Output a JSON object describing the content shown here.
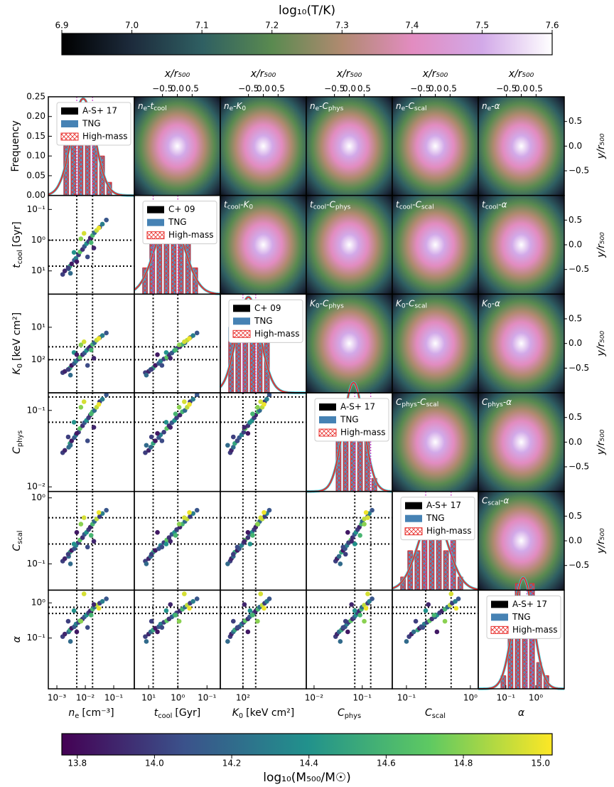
{
  "colorbar_T": {
    "label": "log₁₀(T/K)",
    "lim": [
      6.9,
      7.6
    ],
    "ticks": [
      6.9,
      {
        "value": 7,
        "label": "7.0"
      },
      7.1,
      7.2,
      7.3,
      7.4,
      7.5,
      7.6
    ],
    "colors": [
      "#000000",
      "#1d2b3c",
      "#2f5f62",
      "#5a8a50",
      "#b08a70",
      "#e28cc0",
      "#d2a9e8",
      "#ffffff"
    ]
  },
  "colorbar_M": {
    "label": "log₁₀(M₅₀₀/M☉)",
    "lim": [
      13.76,
      15.03
    ],
    "ticks": [
      13.8,
      {
        "value": 14,
        "label": "14.0"
      },
      14.2,
      14.4,
      14.6,
      14.8,
      {
        "value": 15,
        "label": "15.0"
      }
    ],
    "colors": [
      "#440154",
      "#3b528b",
      "#21918c",
      "#5ec962",
      "#fde725"
    ]
  },
  "image_axes": {
    "x_label": "x/r₅₀₀",
    "y_label": "y/r₅₀₀",
    "xlim": [
      -1.45,
      1.45
    ],
    "ylim": [
      -1,
      1
    ],
    "ticks": [
      {
        "value": -0.5,
        "label": "−0.5"
      },
      {
        "value": 0,
        "label": "0.0"
      },
      0.5
    ]
  },
  "separator": "-",
  "frequency": {
    "label": "Frequency",
    "lim": [
      0,
      0.25
    ],
    "ticks": [
      {
        "value": 0,
        "label": "0.00"
      },
      0.05,
      {
        "value": 0.1,
        "label": "0.10"
      },
      0.15,
      {
        "value": 0.2,
        "label": "0.20"
      },
      0.25
    ]
  },
  "histogram": {
    "colors": [
      "#000000",
      "#4682b4",
      "#e8312e"
    ],
    "curve_colors": [
      "#2ad4e6",
      "#e8312e"
    ],
    "threshold_color": "#cc44cc",
    "scatter_threshold_color": "#000000"
  },
  "variables": [
    {
      "sym": "n",
      "sub": "e",
      "unit": "[cm⁻³]",
      "xlim": [
        0.0005,
        0.53
      ],
      "xticks": [
        {
          "value": 0.001,
          "label": "10⁻³"
        },
        {
          "value": 0.01,
          "label": "10⁻²"
        },
        {
          "value": 0.1,
          "label": "10⁻¹"
        }
      ],
      "thresholds": [
        0.005,
        0.018
      ],
      "legend": [
        "A-S+ 17",
        "TNG",
        "High-mass"
      ],
      "sample": [
        0.0016,
        0.0019,
        0.0026,
        0.0029,
        0.0033,
        0.0041,
        0.0047,
        0.0058,
        0.0065,
        0.008,
        0.0093,
        0.011,
        0.013,
        0.015,
        0.018,
        0.021,
        0.025,
        0.032,
        0.04,
        0.055,
        0.004,
        0.012,
        0.007,
        0.02,
        0.003,
        0.009,
        0.005,
        0.016,
        0.0025,
        0.03
      ]
    },
    {
      "sym": "t",
      "sub": "cool",
      "unit": "[Gyr]",
      "xlim": [
        31,
        0.035
      ],
      "xticks": [
        {
          "value": 10,
          "label": "10¹"
        },
        {
          "value": 1,
          "label": "10⁰"
        },
        {
          "value": 0.1,
          "label": "10⁻¹"
        }
      ],
      "ylim": [
        57,
        0.035
      ],
      "yticks": [
        {
          "value": 0.1,
          "label": "10⁻¹"
        },
        {
          "value": 1,
          "label": "10⁰"
        },
        {
          "value": 10,
          "label": "10¹"
        }
      ],
      "thresholds": [
        1,
        7
      ],
      "legend": [
        "C+ 09",
        "TNG",
        "High-mass"
      ],
      "sample": [
        13,
        10,
        8.5,
        7,
        5.9,
        4.5,
        3.9,
        3,
        2.4,
        2,
        1.6,
        1.3,
        1.1,
        0.85,
        0.7,
        0.57,
        0.48,
        0.38,
        0.3,
        0.22,
        2.5,
        3.5,
        0.9,
        1.8,
        12,
        0.6,
        5,
        1.2,
        8,
        0.4
      ]
    },
    {
      "sym": "K",
      "sub": "0",
      "unit": "[keV cm²]",
      "xlim": [
        510,
        1.05
      ],
      "xticks": [
        {
          "value": 100,
          "label": "10²"
        }
      ],
      "ylim": [
        1050,
        0.95
      ],
      "yticks": [
        {
          "value": 10,
          "label": "10¹"
        },
        {
          "value": 100,
          "label": "10²"
        }
      ],
      "thresholds": [
        40,
        100
      ],
      "legend": [
        "C+ 09",
        "TNG",
        "High-mass"
      ],
      "sample": [
        250,
        230,
        200,
        180,
        150,
        130,
        110,
        95,
        85,
        70,
        62,
        52,
        45,
        40,
        34,
        30,
        25,
        21,
        18,
        15,
        60,
        150,
        35,
        90,
        300,
        28,
        70,
        50,
        200,
        22
      ]
    },
    {
      "sym": "C",
      "sub": "phys",
      "xlim": [
        0.0069,
        0.42
      ],
      "xticks": [
        {
          "value": 0.01,
          "label": "10⁻²"
        },
        {
          "value": 0.1,
          "label": "10⁻¹"
        }
      ],
      "ylim": [
        0.0087,
        0.17
      ],
      "yticks": [
        {
          "value": 0.1,
          "label": "10⁻¹"
        },
        {
          "value": 0.01,
          "label": "10⁻²"
        }
      ],
      "thresholds": [
        0.07,
        0.15
      ],
      "legend": [
        "A-S+ 17",
        "TNG",
        "High-mass"
      ],
      "sample": [
        0.028,
        0.03,
        0.033,
        0.037,
        0.04,
        0.044,
        0.048,
        0.052,
        0.058,
        0.063,
        0.069,
        0.074,
        0.08,
        0.087,
        0.096,
        0.1,
        0.11,
        0.13,
        0.14,
        0.16,
        0.07,
        0.04,
        0.11,
        0.06,
        0.035,
        0.13,
        0.05,
        0.09,
        0.045,
        0.12
      ]
    },
    {
      "sym": "C",
      "sub": "scal",
      "xlim": [
        0.06,
        1.33
      ],
      "xticks": [
        {
          "value": 0.1,
          "label": "10⁻¹"
        },
        {
          "value": 1,
          "label": "10⁰"
        }
      ],
      "ylim": [
        0.04,
        1.25
      ],
      "yticks": [
        {
          "value": 1,
          "label": "10⁰"
        },
        {
          "value": 0.1,
          "label": "10⁻¹"
        }
      ],
      "thresholds": [
        0.2,
        0.5
      ],
      "legend": [
        "A-S+ 17",
        "TNG",
        "High-mass"
      ],
      "sample": [
        0.11,
        0.12,
        0.13,
        0.15,
        0.16,
        0.17,
        0.19,
        0.21,
        0.23,
        0.25,
        0.28,
        0.3,
        0.33,
        0.36,
        0.4,
        0.44,
        0.48,
        0.52,
        0.58,
        0.65,
        0.2,
        0.18,
        0.4,
        0.22,
        0.1,
        0.5,
        0.3,
        0.27,
        0.14,
        0.6
      ]
    },
    {
      "sym": "α",
      "xlim": [
        0.012,
        8.9
      ],
      "xticks": [
        {
          "value": 0.1,
          "label": "10⁻¹"
        },
        {
          "value": 1,
          "label": "10⁰"
        }
      ],
      "ylim": [
        0.0036,
        2.3
      ],
      "yticks": [
        {
          "value": 1,
          "label": "10⁰"
        },
        {
          "value": 0.1,
          "label": "10⁻¹"
        }
      ],
      "thresholds": [
        0.5,
        0.75
      ],
      "legend": [
        "A-S+ 17",
        "TNG",
        "High-mass"
      ],
      "sample": [
        0.11,
        0.13,
        0.15,
        0.17,
        0.19,
        0.21,
        0.25,
        0.28,
        0.31,
        0.35,
        0.4,
        0.45,
        0.52,
        0.59,
        0.66,
        0.76,
        0.86,
        0.98,
        1.1,
        1.3,
        0.6,
        0.2,
        0.3,
        0.9,
        0.08,
        1.8,
        0.15,
        0.45,
        0.3,
        0.7
      ]
    }
  ],
  "mass": [
    14.0,
    13.9,
    14.2,
    14.5,
    13.85,
    14.1,
    14.3,
    14.0,
    14.7,
    13.95,
    14.1,
    14.4,
    14.0,
    13.9,
    14.6,
    14.2,
    14.9,
    14.0,
    14.3,
    14.1,
    14.4,
    14.05,
    14.8,
    13.9,
    14.2,
    14.95,
    13.85,
    14.6,
    14.0,
    15.0
  ]
}
